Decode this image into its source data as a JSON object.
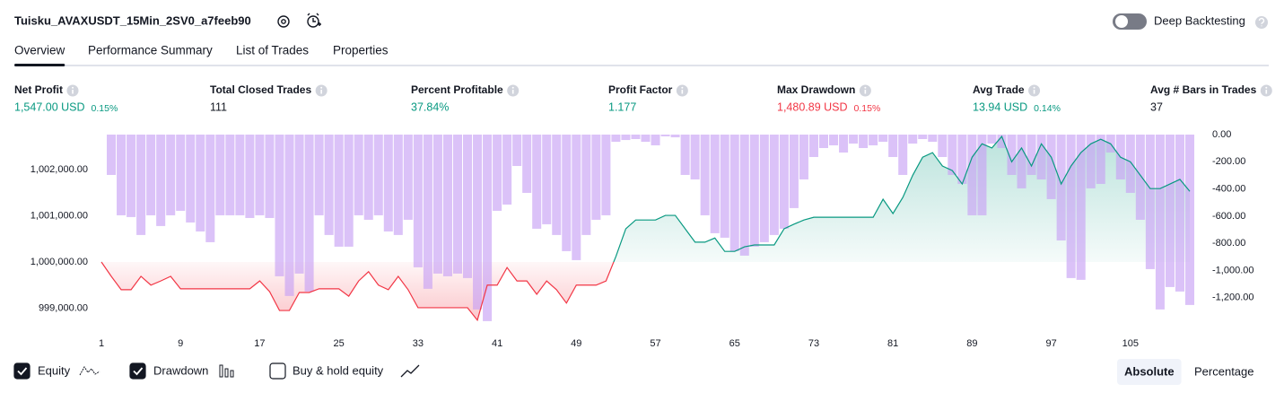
{
  "header": {
    "title": "Tuisku_AVAXUSDT_15Min_2SV0_a7feeb90",
    "deep_backtesting": "Deep Backtesting"
  },
  "tabs": [
    "Overview",
    "Performance Summary",
    "List of Trades",
    "Properties"
  ],
  "active_tab": 0,
  "metrics": [
    {
      "label": "Net Profit",
      "value": "1,547.00 USD",
      "pct": "0.15%",
      "color": "#089981"
    },
    {
      "label": "Total Closed Trades",
      "value": "111",
      "color": "#131722"
    },
    {
      "label": "Percent Profitable",
      "value": "37.84%",
      "color": "#089981"
    },
    {
      "label": "Profit Factor",
      "value": "1.177",
      "color": "#089981"
    },
    {
      "label": "Max Drawdown",
      "value": "1,480.89 USD",
      "pct": "0.15%",
      "color": "#f23645"
    },
    {
      "label": "Avg Trade",
      "value": "13.94 USD",
      "pct": "0.14%",
      "color": "#089981"
    },
    {
      "label": "Avg # Bars in Trades",
      "value": "37",
      "color": "#131722"
    }
  ],
  "chart_data": {
    "type": "equity-drawdown",
    "x": [
      1,
      2,
      3,
      4,
      5,
      6,
      7,
      8,
      9,
      10,
      11,
      12,
      13,
      14,
      15,
      16,
      17,
      18,
      19,
      20,
      21,
      22,
      23,
      24,
      25,
      26,
      27,
      28,
      29,
      30,
      31,
      32,
      33,
      34,
      35,
      36,
      37,
      38,
      39,
      40,
      41,
      42,
      43,
      44,
      45,
      46,
      47,
      48,
      49,
      50,
      51,
      52,
      53,
      54,
      55,
      56,
      57,
      58,
      59,
      60,
      61,
      62,
      63,
      64,
      65,
      66,
      67,
      68,
      69,
      70,
      71,
      72,
      73,
      74,
      75,
      76,
      77,
      78,
      79,
      80,
      81,
      82,
      83,
      84,
      85,
      86,
      87,
      88,
      89,
      90,
      91,
      92,
      93,
      94,
      95,
      96,
      97,
      98,
      99,
      100,
      101,
      102,
      103,
      104,
      105,
      106,
      107,
      108,
      109,
      110,
      111
    ],
    "xlim": [
      1,
      111
    ],
    "xticks": [
      1,
      9,
      17,
      25,
      33,
      41,
      49,
      57,
      65,
      73,
      81,
      89,
      97,
      105
    ],
    "ylim": [
      998640,
      1002760
    ],
    "yticks": [
      {
        "value": 999000,
        "label": "999,000.00"
      },
      {
        "value": 1000000,
        "label": "1,000,000.00"
      },
      {
        "value": 1001000,
        "label": "1,001,000.00"
      },
      {
        "value": 1002000,
        "label": "1,002,000.00"
      }
    ],
    "y2lim": [
      -1400,
      0
    ],
    "y2ticks": [
      {
        "value": 0,
        "label": "0.00"
      },
      {
        "value": -200,
        "label": "-200.00"
      },
      {
        "value": -400,
        "label": "-400.00"
      },
      {
        "value": -600,
        "label": "-600.00"
      },
      {
        "value": -800,
        "label": "-800.00"
      },
      {
        "value": -1000,
        "label": "-1,000.00"
      },
      {
        "value": -1200,
        "label": "-1,200.00"
      }
    ],
    "series": [
      {
        "name": "Equity",
        "type": "line",
        "color": "#089981",
        "negative_color": "#f23645",
        "values": [
          1000000,
          999690,
          999400,
          999400,
          999690,
          999500,
          999590,
          999690,
          999420,
          999420,
          999420,
          999420,
          999420,
          999420,
          999420,
          999420,
          999590,
          999360,
          998950,
          998950,
          999340,
          999340,
          999420,
          999420,
          999420,
          999260,
          999590,
          999790,
          999500,
          999400,
          999690,
          999400,
          999010,
          999010,
          999010,
          999010,
          999010,
          999010,
          998740,
          999500,
          999500,
          999880,
          999590,
          999590,
          999300,
          999590,
          999400,
          999110,
          999500,
          999500,
          999500,
          999590,
          1000120,
          1000720,
          1000910,
          1000910,
          1000910,
          1001010,
          1001010,
          1000720,
          1000430,
          1000430,
          1000520,
          1000230,
          1000230,
          1000330,
          1000370,
          1000370,
          1000370,
          1000720,
          1000820,
          1000910,
          1000970,
          1000970,
          1000970,
          1000970,
          1000970,
          1000970,
          1000970,
          1001360,
          1001050,
          1001400,
          1001880,
          1002270,
          1002370,
          1002080,
          1001980,
          1001690,
          1002270,
          1002560,
          1002470,
          1002720,
          1002170,
          1002470,
          1002080,
          1002560,
          1002270,
          1001690,
          1002080,
          1002370,
          1002560,
          1002660,
          1002560,
          1002270,
          1002170,
          1001880,
          1001590,
          1001590,
          1001690,
          1001790,
          1001530
        ]
      },
      {
        "name": "Drawdown",
        "type": "bar",
        "axis": "y2",
        "color": "#c7a2f4",
        "values": [
          0,
          -297,
          -594,
          -607,
          -739,
          -594,
          -673,
          -594,
          -561,
          -647,
          -713,
          -792,
          -594,
          -594,
          -594,
          -614,
          -594,
          -614,
          -1043,
          -1188,
          -1023,
          -1155,
          -594,
          -739,
          -825,
          -825,
          -594,
          -627,
          -594,
          -713,
          -739,
          -627,
          -977,
          -1135,
          -1023,
          -1043,
          -1023,
          -1056,
          -1287,
          -1373,
          -561,
          -515,
          -231,
          -429,
          -693,
          -660,
          -739,
          -858,
          -924,
          -739,
          -627,
          -594,
          -53,
          -40,
          -33,
          -53,
          -79,
          -13,
          -20,
          -297,
          -330,
          -594,
          -726,
          -759,
          -858,
          -891,
          -825,
          -792,
          -739,
          -693,
          -541,
          -330,
          -165,
          -99,
          -79,
          -132,
          -66,
          -99,
          -79,
          -53,
          -165,
          -297,
          -66,
          -33,
          -53,
          -165,
          -297,
          -363,
          -594,
          -594,
          -66,
          -99,
          -297,
          -396,
          -297,
          -330,
          -475,
          -779,
          -1056,
          -1069,
          -396,
          -363,
          -132,
          -330,
          -429,
          -627,
          -990,
          -1287,
          -1122,
          -1155,
          -1254
        ]
      }
    ]
  },
  "footer": {
    "extra_toggle": "Buy & hold equity",
    "modes": [
      "Absolute",
      "Percentage"
    ],
    "active_mode": 0
  }
}
